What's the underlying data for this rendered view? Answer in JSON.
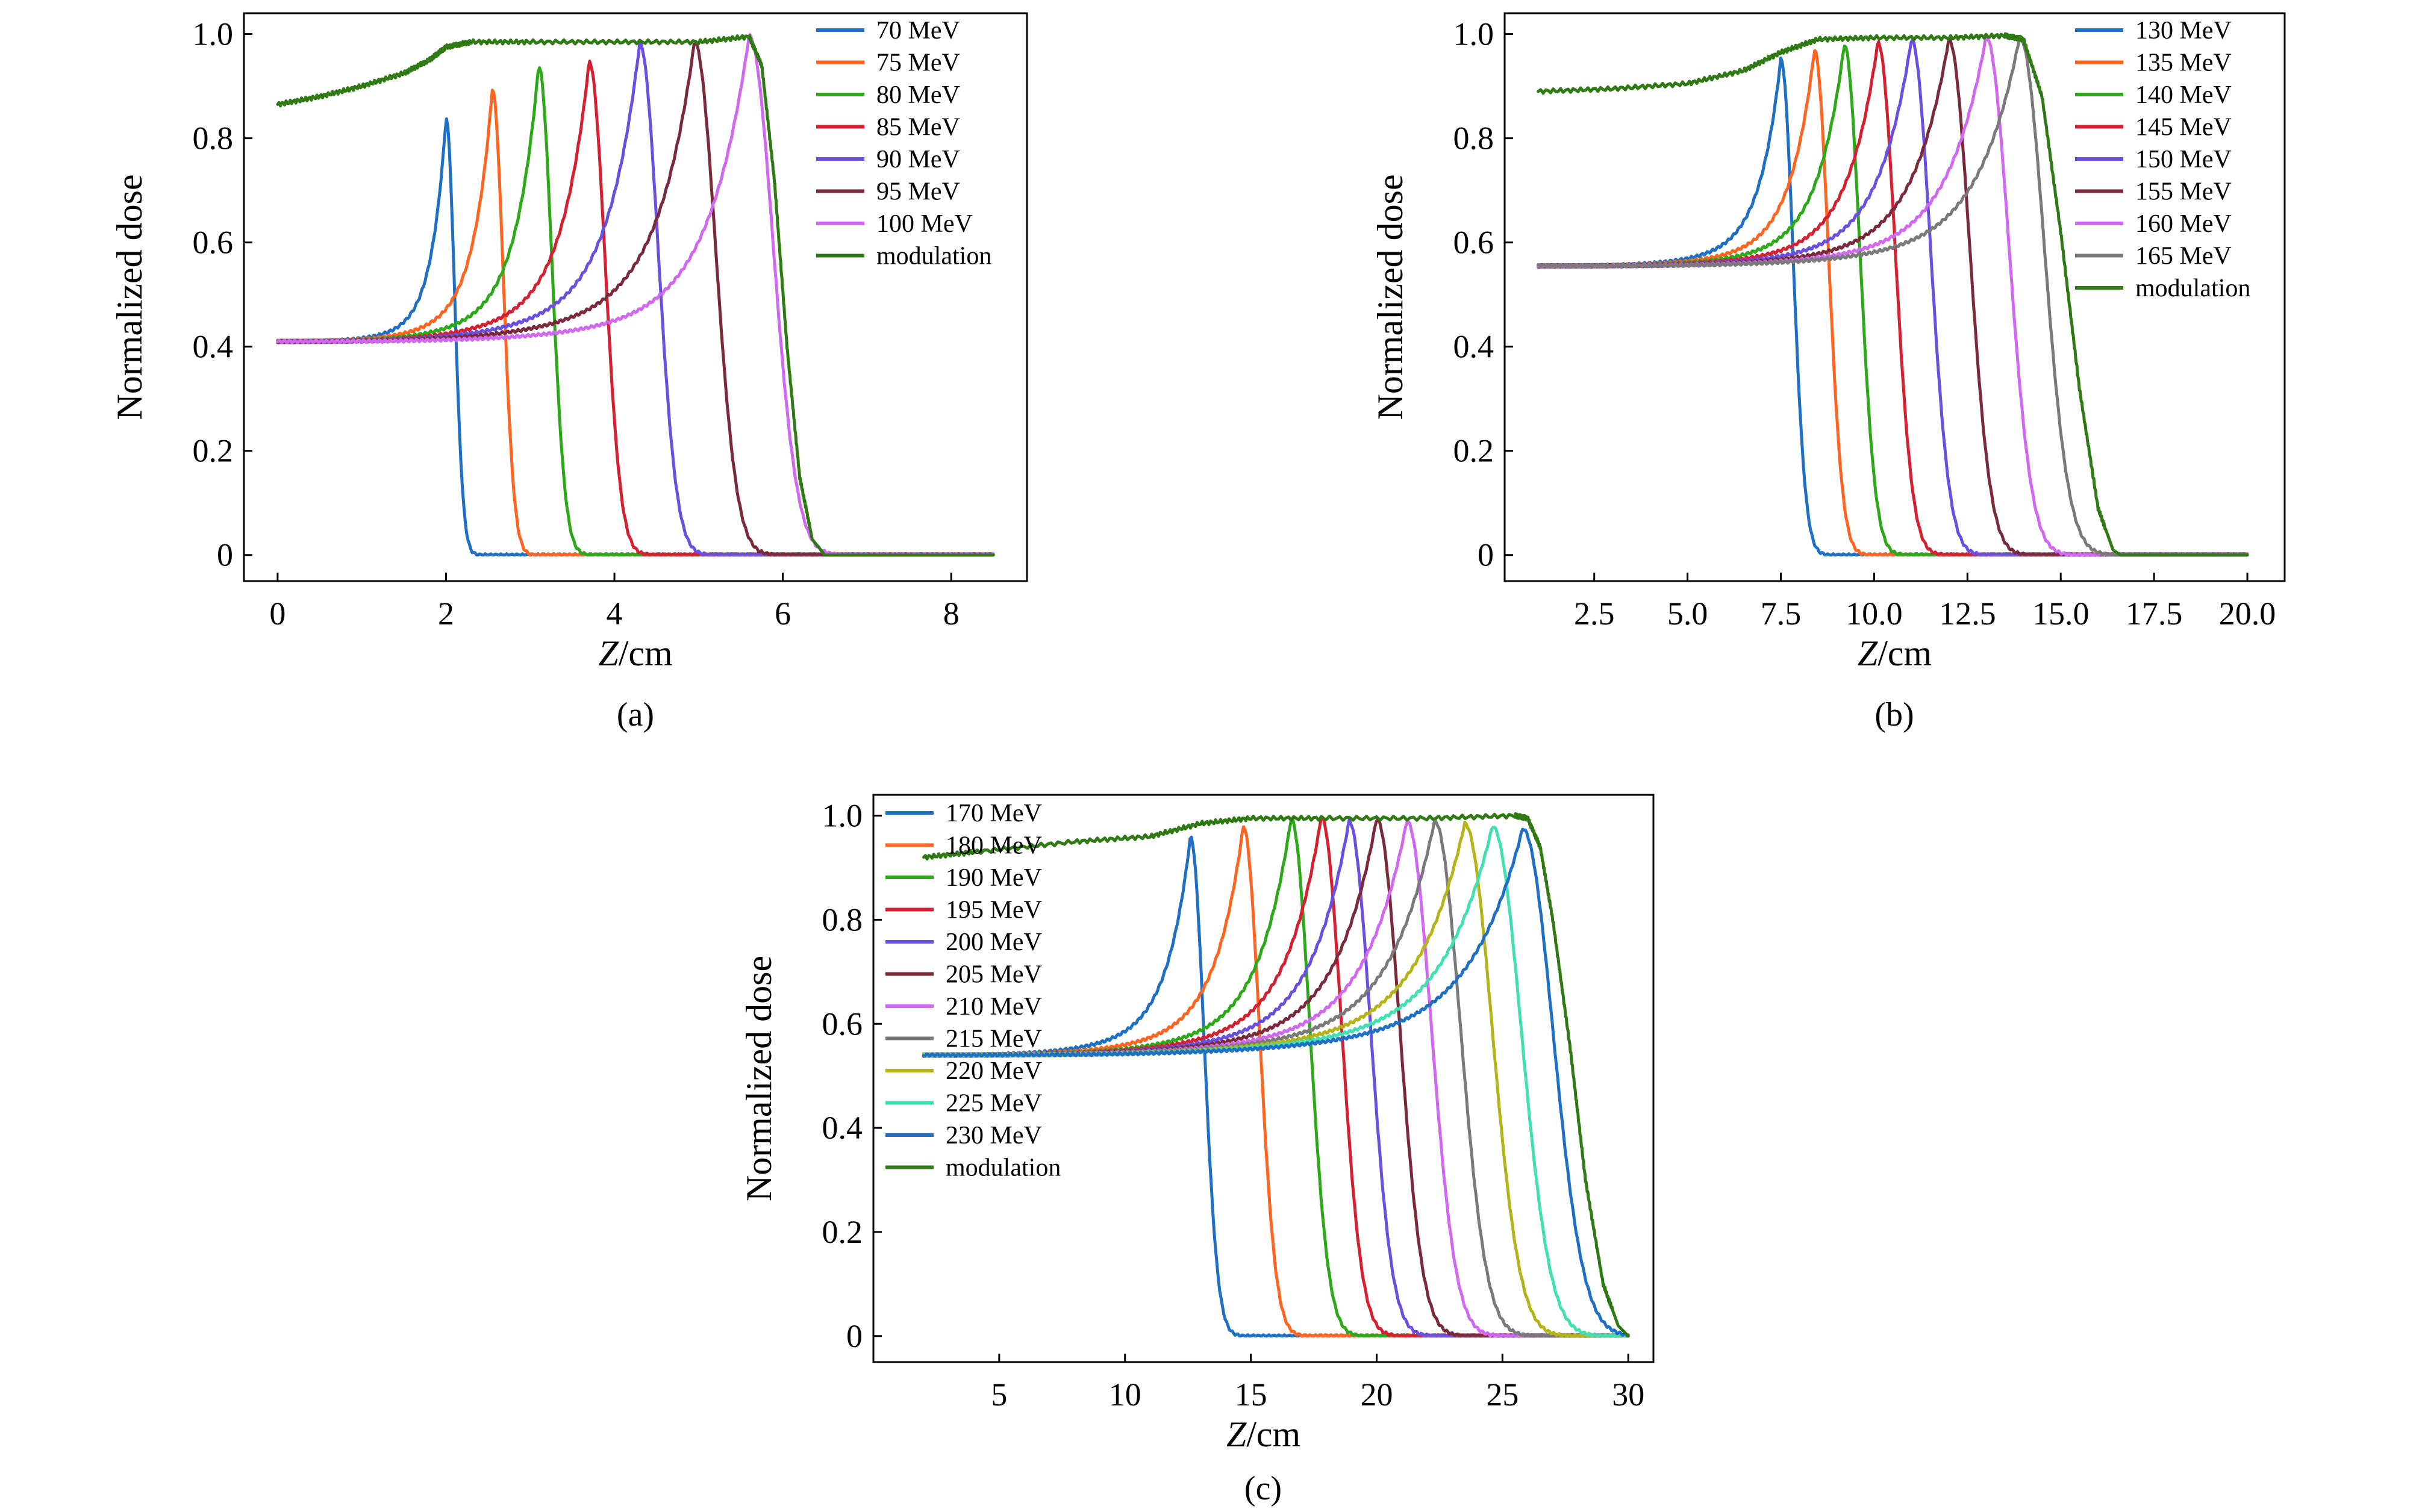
{
  "chart_data": [
    {
      "type": "line",
      "panel_label": "(a)",
      "xlabel_italic": "Z",
      "xlabel_unit": "/cm",
      "ylabel": "Normalized dose",
      "xlim": [
        -0.4,
        8.9
      ],
      "ylim": [
        -0.05,
        1.04
      ],
      "xticks": [
        0,
        2,
        4,
        6,
        8
      ],
      "xtick_labels": [
        "0",
        "2",
        "4",
        "6",
        "8"
      ],
      "yticks": [
        0,
        0.2,
        0.4,
        0.6,
        0.8,
        1.0
      ],
      "ytick_labels": [
        "0",
        "0.2",
        "0.4",
        "0.6",
        "0.8",
        "1.0"
      ],
      "legend_position": "top-right",
      "x_end": 8.5,
      "entrance": 0.41,
      "series": [
        {
          "name": "70 MeV",
          "color": "#1f6fc5",
          "peak_x": 2.0,
          "peak_y": 0.84,
          "plateau_end": 0.45
        },
        {
          "name": "75 MeV",
          "color": "#ff6420",
          "peak_x": 2.55,
          "peak_y": 0.895,
          "plateau_end": 0.47
        },
        {
          "name": "80 MeV",
          "color": "#2ca818",
          "peak_x": 3.1,
          "peak_y": 0.94,
          "plateau_end": 0.48
        },
        {
          "name": "85 MeV",
          "color": "#d42030",
          "peak_x": 3.7,
          "peak_y": 0.948,
          "plateau_end": 0.49
        },
        {
          "name": "90 MeV",
          "color": "#6a4fe0",
          "peak_x": 4.3,
          "peak_y": 0.983,
          "plateau_end": 0.5
        },
        {
          "name": "95 MeV",
          "color": "#7a2a3a",
          "peak_x": 4.95,
          "peak_y": 0.985,
          "plateau_end": 0.5
        },
        {
          "name": "100 MeV",
          "color": "#d068f0",
          "peak_x": 5.6,
          "peak_y": 0.997,
          "plateau_end": 0.47
        }
      ],
      "modulation": {
        "name": "modulation",
        "color": "#2f7a14",
        "points": [
          [
            0,
            0.865
          ],
          [
            0.5,
            0.88
          ],
          [
            1.0,
            0.9
          ],
          [
            1.5,
            0.925
          ],
          [
            1.8,
            0.95
          ],
          [
            2.0,
            0.975
          ],
          [
            2.3,
            0.985
          ],
          [
            3.0,
            0.985
          ],
          [
            4.0,
            0.985
          ],
          [
            5.0,
            0.985
          ],
          [
            5.6,
            0.995
          ],
          [
            5.75,
            0.94
          ],
          [
            5.9,
            0.72
          ],
          [
            6.05,
            0.4
          ],
          [
            6.2,
            0.15
          ],
          [
            6.35,
            0.03
          ],
          [
            6.5,
            0
          ],
          [
            8.5,
            0
          ]
        ]
      }
    },
    {
      "type": "line",
      "panel_label": "(b)",
      "xlabel_italic": "Z",
      "xlabel_unit": "/cm",
      "ylabel": "Normalized dose",
      "xlim": [
        0.1,
        21.0
      ],
      "ylim": [
        -0.05,
        1.04
      ],
      "xticks": [
        2.5,
        5.0,
        7.5,
        10.0,
        12.5,
        15.0,
        17.5,
        20.0
      ],
      "xtick_labels": [
        "2.5",
        "5.0",
        "7.5",
        "10.0",
        "12.5",
        "15.0",
        "17.5",
        "20.0"
      ],
      "yticks": [
        0,
        0.2,
        0.4,
        0.6,
        0.8,
        1.0
      ],
      "ytick_labels": [
        "0",
        "0.2",
        "0.4",
        "0.6",
        "0.8",
        "1.0"
      ],
      "legend_position": "top-right",
      "x_start": 1.0,
      "x_end": 20.0,
      "entrance": 0.555,
      "series": [
        {
          "name": "130 MeV",
          "color": "#1f6fc5",
          "peak_x": 7.5,
          "peak_y": 0.953,
          "plateau_end": 0.6
        },
        {
          "name": "135 MeV",
          "color": "#ff6420",
          "peak_x": 8.4,
          "peak_y": 0.97,
          "plateau_end": 0.6
        },
        {
          "name": "140 MeV",
          "color": "#2ca818",
          "peak_x": 9.2,
          "peak_y": 0.98,
          "plateau_end": 0.6
        },
        {
          "name": "145 MeV",
          "color": "#d42030",
          "peak_x": 10.1,
          "peak_y": 0.985,
          "plateau_end": 0.6
        },
        {
          "name": "150 MeV",
          "color": "#6a4fe0",
          "peak_x": 11.0,
          "peak_y": 0.99,
          "plateau_end": 0.6
        },
        {
          "name": "155 MeV",
          "color": "#7a2a3a",
          "peak_x": 12.0,
          "peak_y": 0.99,
          "plateau_end": 0.6
        },
        {
          "name": "160 MeV",
          "color": "#d068f0",
          "peak_x": 13.0,
          "peak_y": 0.995,
          "plateau_end": 0.6
        },
        {
          "name": "165 MeV",
          "color": "#7a7a7a",
          "peak_x": 13.9,
          "peak_y": 0.995,
          "plateau_end": 0.6
        }
      ],
      "modulation": {
        "name": "modulation",
        "color": "#2f7a14",
        "points": [
          [
            1.0,
            0.89
          ],
          [
            3.0,
            0.895
          ],
          [
            5.0,
            0.905
          ],
          [
            6.5,
            0.93
          ],
          [
            7.5,
            0.965
          ],
          [
            8.5,
            0.99
          ],
          [
            10.0,
            0.993
          ],
          [
            12.0,
            0.993
          ],
          [
            13.5,
            0.997
          ],
          [
            14.0,
            0.99
          ],
          [
            14.5,
            0.88
          ],
          [
            15.0,
            0.62
          ],
          [
            15.5,
            0.32
          ],
          [
            16.0,
            0.09
          ],
          [
            16.4,
            0.01
          ],
          [
            16.6,
            0
          ],
          [
            20.0,
            0
          ]
        ]
      }
    },
    {
      "type": "line",
      "panel_label": "(c)",
      "xlabel_italic": "Z",
      "xlabel_unit": "/cm",
      "ylabel": "Normalized dose",
      "xlim": [
        0.0,
        31.0
      ],
      "ylim": [
        -0.05,
        1.04
      ],
      "xticks": [
        5,
        10,
        15,
        20,
        25,
        30
      ],
      "xtick_labels": [
        "5",
        "10",
        "15",
        "20",
        "25",
        "30"
      ],
      "yticks": [
        0,
        0.2,
        0.4,
        0.6,
        0.8,
        1.0
      ],
      "ytick_labels": [
        "0",
        "0.2",
        "0.4",
        "0.6",
        "0.8",
        "1.0"
      ],
      "legend_position": "top-left",
      "x_start": 2.0,
      "x_end": 30.0,
      "entrance": 0.54,
      "series": [
        {
          "name": "170 MeV",
          "color": "#1f6fc5",
          "peak_x": 12.6,
          "peak_y": 0.96,
          "plateau_end": 0.6
        },
        {
          "name": "180 MeV",
          "color": "#ff6420",
          "peak_x": 14.7,
          "peak_y": 0.98,
          "plateau_end": 0.6
        },
        {
          "name": "190 MeV",
          "color": "#2ca818",
          "peak_x": 16.6,
          "peak_y": 0.995,
          "plateau_end": 0.6
        },
        {
          "name": "195 MeV",
          "color": "#d42030",
          "peak_x": 17.8,
          "peak_y": 0.998,
          "plateau_end": 0.6
        },
        {
          "name": "200 MeV",
          "color": "#6a4fe0",
          "peak_x": 18.9,
          "peak_y": 0.99,
          "plateau_end": 0.6
        },
        {
          "name": "205 MeV",
          "color": "#7a2a3a",
          "peak_x": 20.0,
          "peak_y": 0.995,
          "plateau_end": 0.6
        },
        {
          "name": "210 MeV",
          "color": "#d068f0",
          "peak_x": 21.2,
          "peak_y": 0.99,
          "plateau_end": 0.6
        },
        {
          "name": "215 MeV",
          "color": "#7a7a7a",
          "peak_x": 22.3,
          "peak_y": 0.99,
          "plateau_end": 0.6
        },
        {
          "name": "220 MeV",
          "color": "#b4b418",
          "peak_x": 23.5,
          "peak_y": 0.985,
          "plateau_end": 0.6
        },
        {
          "name": "225 MeV",
          "color": "#40e0b0",
          "peak_x": 24.6,
          "peak_y": 0.98,
          "plateau_end": 0.6
        },
        {
          "name": "230 MeV",
          "color": "#1f6fc5",
          "peak_x": 25.8,
          "peak_y": 0.975,
          "plateau_end": 0.6
        }
      ],
      "modulation": {
        "name": "modulation",
        "color": "#2f7a14",
        "points": [
          [
            2.0,
            0.92
          ],
          [
            4.0,
            0.93
          ],
          [
            8.0,
            0.95
          ],
          [
            11.0,
            0.96
          ],
          [
            13.0,
            0.985
          ],
          [
            15.0,
            0.995
          ],
          [
            18.0,
            0.995
          ],
          [
            22.0,
            0.995
          ],
          [
            25.5,
            1.0
          ],
          [
            26.0,
            0.995
          ],
          [
            26.5,
            0.94
          ],
          [
            27.0,
            0.8
          ],
          [
            27.7,
            0.55
          ],
          [
            28.3,
            0.3
          ],
          [
            29.0,
            0.1
          ],
          [
            29.6,
            0.02
          ],
          [
            30.0,
            0.0
          ]
        ]
      }
    }
  ]
}
